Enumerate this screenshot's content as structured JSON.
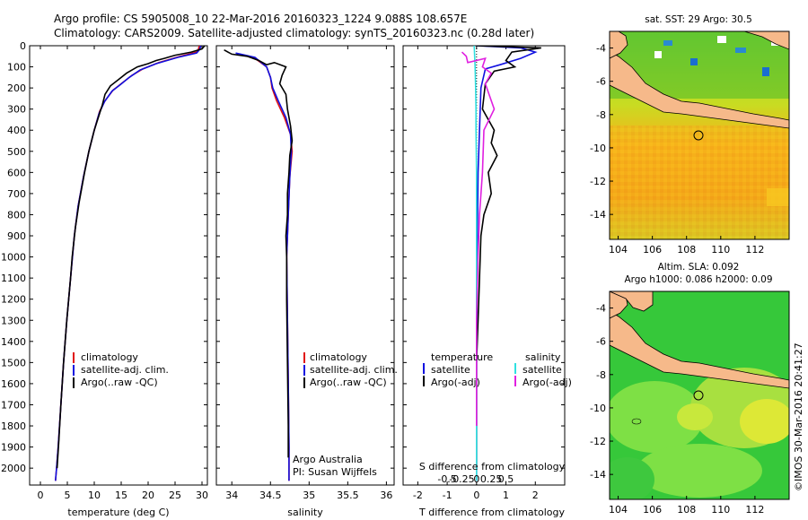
{
  "header": {
    "line1": "Argo profile: CS 5905008_10 22-Mar-2016 20160323_1224 9.088S 108.657E",
    "line2": "Climatology: CARS2009. Satellite-adjusted climatology: synTS_20160323.nc (0.28d later)"
  },
  "colors": {
    "climatology": "#e01010",
    "satellite": "#1010e0",
    "argo": "#000000",
    "sat_salinity": "#30e0e0",
    "argo_salinity": "#e020e0"
  },
  "chart_data": [
    {
      "type": "line",
      "panel": "temperature",
      "xlabel": "temperature (deg C)",
      "ylabel": "",
      "xlim": [
        -2,
        31
      ],
      "ylim": [
        2080,
        0
      ],
      "xticks": [
        "0",
        "5",
        "10",
        "15",
        "20",
        "25",
        "30"
      ],
      "yticks": [
        "0",
        "100",
        "200",
        "300",
        "400",
        "500",
        "600",
        "700",
        "800",
        "900",
        "1000",
        "1100",
        "1200",
        "1300",
        "1400",
        "1500",
        "1600",
        "1700",
        "1800",
        "1900",
        "2000"
      ],
      "legend": [
        "climatology",
        "satellite-adj. clim.",
        "Argo(..raw -QC)"
      ],
      "series": [
        {
          "name": "climatology",
          "color_key": "climatology",
          "points": [
            [
              29.5,
              0
            ],
            [
              29.3,
              20
            ],
            [
              29,
              30
            ],
            [
              26,
              50
            ],
            [
              22,
              80
            ],
            [
              19,
              110
            ],
            [
              17,
              140
            ],
            [
              15,
              180
            ],
            [
              13.5,
              210
            ],
            [
              12,
              260
            ],
            [
              11,
              310
            ],
            [
              10,
              400
            ],
            [
              9,
              500
            ],
            [
              8,
              620
            ],
            [
              7,
              760
            ],
            [
              6.3,
              900
            ],
            [
              5.6,
              1100
            ],
            [
              4.9,
              1300
            ],
            [
              4.3,
              1500
            ],
            [
              3.8,
              1700
            ],
            [
              3.3,
              1900
            ],
            [
              3,
              2000
            ],
            [
              2.8,
              2060
            ]
          ]
        },
        {
          "name": "satellite-adj. clim.",
          "color_key": "satellite",
          "points": [
            [
              29.8,
              0
            ],
            [
              29.5,
              20
            ],
            [
              29,
              35
            ],
            [
              25.5,
              55
            ],
            [
              21.5,
              85
            ],
            [
              18.5,
              115
            ],
            [
              16.5,
              150
            ],
            [
              14.8,
              185
            ],
            [
              13.3,
              215
            ],
            [
              11.9,
              265
            ],
            [
              10.9,
              320
            ],
            [
              10,
              400
            ],
            [
              9,
              500
            ],
            [
              8,
              620
            ],
            [
              7,
              760
            ],
            [
              6.3,
              900
            ],
            [
              5.6,
              1100
            ],
            [
              4.9,
              1300
            ],
            [
              4.3,
              1500
            ],
            [
              3.8,
              1700
            ],
            [
              3.3,
              1900
            ],
            [
              3,
              2000
            ],
            [
              2.8,
              2060
            ]
          ]
        },
        {
          "name": "Argo(..raw -QC)",
          "color_key": "argo",
          "points": [
            [
              30.5,
              0
            ],
            [
              30,
              15
            ],
            [
              28,
              30
            ],
            [
              25,
              45
            ],
            [
              23,
              60
            ],
            [
              21.5,
              70
            ],
            [
              20,
              85
            ],
            [
              18,
              100
            ],
            [
              16,
              130
            ],
            [
              14.5,
              160
            ],
            [
              13,
              190
            ],
            [
              12,
              230
            ],
            [
              11.5,
              280
            ],
            [
              11,
              320
            ],
            [
              10,
              400
            ],
            [
              9,
              500
            ],
            [
              8.2,
              600
            ],
            [
              7.2,
              740
            ],
            [
              6.5,
              860
            ],
            [
              5.9,
              1000
            ],
            [
              5.6,
              1100
            ],
            [
              4.9,
              1300
            ],
            [
              4.3,
              1500
            ],
            [
              3.8,
              1700
            ],
            [
              3.4,
              1880
            ],
            [
              3.1,
              2000
            ]
          ]
        }
      ]
    },
    {
      "type": "line",
      "panel": "salinity",
      "xlabel": "salinity",
      "xlim": [
        33.8,
        36.1
      ],
      "ylim": [
        2080,
        0
      ],
      "xticks": [
        "34",
        "34.5",
        "35",
        "35.5",
        "36"
      ],
      "legend": [
        "climatology",
        "satellite-adj. clim.",
        "Argo(..raw -QC)"
      ],
      "annotation": [
        "Argo Australia",
        "PI: Susan Wijffels"
      ],
      "series": [
        {
          "name": "climatology",
          "color_key": "climatology",
          "points": [
            [
              34.1,
              40
            ],
            [
              34.3,
              60
            ],
            [
              34.45,
              100
            ],
            [
              34.5,
              150
            ],
            [
              34.52,
              200
            ],
            [
              34.58,
              260
            ],
            [
              34.68,
              340
            ],
            [
              34.76,
              420
            ],
            [
              34.78,
              500
            ],
            [
              34.75,
              620
            ],
            [
              34.73,
              800
            ],
            [
              34.71,
              1000
            ],
            [
              34.72,
              1300
            ],
            [
              34.73,
              1600
            ],
            [
              34.74,
              1900
            ],
            [
              34.74,
              2060
            ]
          ]
        },
        {
          "name": "satellite-adj. clim.",
          "color_key": "satellite",
          "points": [
            [
              34.05,
              35
            ],
            [
              34.3,
              55
            ],
            [
              34.45,
              100
            ],
            [
              34.5,
              150
            ],
            [
              34.53,
              200
            ],
            [
              34.6,
              260
            ],
            [
              34.7,
              340
            ],
            [
              34.76,
              420
            ],
            [
              34.77,
              500
            ],
            [
              34.75,
              620
            ],
            [
              34.73,
              800
            ],
            [
              34.71,
              1000
            ],
            [
              34.72,
              1300
            ],
            [
              34.73,
              1600
            ],
            [
              34.74,
              1900
            ],
            [
              34.74,
              2060
            ]
          ]
        },
        {
          "name": "Argo(..raw -QC)",
          "color_key": "argo",
          "points": [
            [
              33.9,
              20
            ],
            [
              34,
              40
            ],
            [
              34.2,
              50
            ],
            [
              34.35,
              70
            ],
            [
              34.45,
              90
            ],
            [
              34.55,
              80
            ],
            [
              34.7,
              100
            ],
            [
              34.65,
              140
            ],
            [
              34.62,
              180
            ],
            [
              34.7,
              230
            ],
            [
              34.72,
              300
            ],
            [
              34.76,
              380
            ],
            [
              34.78,
              450
            ],
            [
              34.75,
              520
            ],
            [
              34.74,
              600
            ],
            [
              34.72,
              700
            ],
            [
              34.72,
              800
            ],
            [
              34.7,
              900
            ],
            [
              34.71,
              1000
            ],
            [
              34.71,
              1200
            ],
            [
              34.72,
              1500
            ],
            [
              34.73,
              1800
            ],
            [
              34.73,
              1950
            ]
          ]
        }
      ]
    },
    {
      "type": "line",
      "panel": "difference",
      "xlabel": "T difference from climatology",
      "xlabel_top": "S difference from climatology",
      "xlim": [
        -2.5,
        3
      ],
      "ylim": [
        2080,
        0
      ],
      "xticks": [
        "-2",
        "-1",
        "0",
        "1",
        "2"
      ],
      "xticks_top": [
        "-0.5",
        "-0.25",
        "0",
        "0.25",
        "0.5"
      ],
      "legend_headers": [
        "temperature",
        "salinity"
      ],
      "legend": [
        "satellite",
        "Argo(-adj)",
        "satellite",
        "Argo(-adj)"
      ],
      "series": [
        {
          "name": "T satellite",
          "color_key": "satellite",
          "points": [
            [
              0,
              0
            ],
            [
              1.5,
              10
            ],
            [
              2,
              30
            ],
            [
              1.5,
              60
            ],
            [
              0.8,
              90
            ],
            [
              0.3,
              110
            ],
            [
              0.15,
              200
            ],
            [
              0.1,
              400
            ],
            [
              0.05,
              600
            ],
            [
              0.02,
              1000
            ],
            [
              0,
              1500
            ],
            [
              0,
              2060
            ]
          ]
        },
        {
          "name": "T Argo(-adj)",
          "color_key": "argo",
          "points": [
            [
              0,
              0
            ],
            [
              2.2,
              10
            ],
            [
              1.2,
              30
            ],
            [
              1,
              70
            ],
            [
              1.3,
              100
            ],
            [
              0.6,
              120
            ],
            [
              0.3,
              180
            ],
            [
              0.2,
              300
            ],
            [
              0.6,
              400
            ],
            [
              0.5,
              460
            ],
            [
              0.7,
              520
            ],
            [
              0.4,
              600
            ],
            [
              0.5,
              700
            ],
            [
              0.25,
              800
            ],
            [
              0.15,
              900
            ],
            [
              0.1,
              1100
            ],
            [
              0.05,
              1300
            ],
            [
              0,
              1500
            ],
            [
              0,
              2000
            ]
          ]
        },
        {
          "name": "S satellite",
          "color_key": "sat_salinity",
          "points": [
            [
              -0.08,
              0
            ],
            [
              -0.05,
              100
            ],
            [
              -0.03,
              200
            ],
            [
              -0.02,
              300
            ],
            [
              -0.02,
              400
            ],
            [
              0,
              600
            ],
            [
              0,
              1000
            ],
            [
              0,
              2060
            ]
          ]
        },
        {
          "name": "S Argo(-adj)",
          "color_key": "argo_salinity",
          "points": [
            [
              -0.5,
              30
            ],
            [
              -0.35,
              50
            ],
            [
              -0.3,
              80
            ],
            [
              0.3,
              60
            ],
            [
              0.2,
              100
            ],
            [
              0.5,
              130
            ],
            [
              0.3,
              180
            ],
            [
              0.6,
              300
            ],
            [
              0.25,
              400
            ],
            [
              0.2,
              600
            ],
            [
              0.1,
              800
            ],
            [
              0.05,
              1000
            ],
            [
              0,
              1300
            ],
            [
              0,
              1800
            ]
          ]
        }
      ]
    },
    {
      "type": "heatmap",
      "panel": "sst_map",
      "title": "sat. SST: 29 Argo: 30.5",
      "xlim": [
        103.5,
        114
      ],
      "ylim": [
        -15.5,
        -3
      ],
      "xticks": [
        "104",
        "106",
        "108",
        "110",
        "112"
      ],
      "yticks": [
        "-4",
        "-6",
        "-8",
        "-10",
        "-12",
        "-14"
      ],
      "float_position": [
        108.657,
        -9.088
      ]
    },
    {
      "type": "heatmap",
      "panel": "sla_map",
      "title": "Altim. SLA: 0.092",
      "subtitle": "Argo h1000: 0.086 h2000: 0.09",
      "xlim": [
        103.5,
        114
      ],
      "ylim": [
        -15.5,
        -3
      ],
      "xticks": [
        "104",
        "106",
        "108",
        "110",
        "112"
      ],
      "yticks": [
        "-4",
        "-6",
        "-8",
        "-10",
        "-12",
        "-14"
      ],
      "float_position": [
        108.657,
        -9.088
      ]
    }
  ],
  "footer": {
    "credit": "©IMOS 30-Mar-2016 20:41:27"
  }
}
